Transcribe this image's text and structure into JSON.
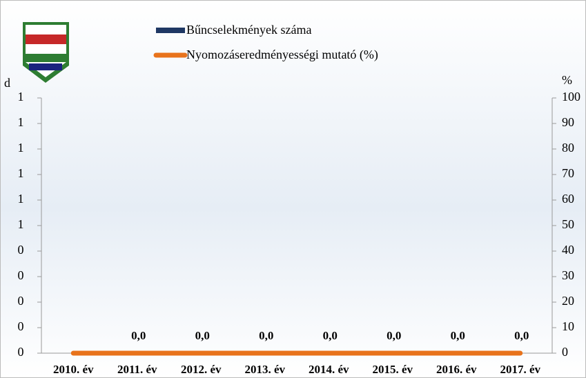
{
  "chart_data": {
    "type": "bar_line",
    "y_label": "d",
    "y2_label": "%",
    "categories": [
      "2010. év",
      "2011. év",
      "2012. év",
      "2013. év",
      "2014. év",
      "2015. év",
      "2016. év",
      "2017. év"
    ],
    "series": [
      {
        "name": "Bűncselekmények száma",
        "type": "bar",
        "color": "#1f3864",
        "values": [
          0,
          0,
          0,
          0,
          0,
          0,
          0,
          0
        ]
      },
      {
        "name": "Nyomozáseredményességi mutató (%)",
        "type": "line",
        "axis": "y2",
        "color": "#e8731c",
        "values": [
          0,
          0,
          0,
          0,
          0,
          0,
          0,
          0
        ],
        "value_labels": [
          null,
          "0,0",
          "0,0",
          "0,0",
          "0,0",
          "0,0",
          "0,0",
          "0,0"
        ]
      }
    ],
    "ylim": [
      0,
      1
    ],
    "yticks": [
      0,
      {
        "value": 0.1,
        "label": "0"
      },
      {
        "value": 0.2,
        "label": "0"
      },
      {
        "value": 0.3,
        "label": "0"
      },
      {
        "value": 0.4,
        "label": "0"
      },
      {
        "value": 0.5,
        "label": "1"
      },
      {
        "value": 0.6,
        "label": "1"
      },
      {
        "value": 0.7,
        "label": "1"
      },
      {
        "value": 0.8,
        "label": "1"
      },
      {
        "value": 0.9,
        "label": "1"
      },
      1
    ],
    "y2lim": [
      0,
      100
    ],
    "y2ticks": [
      0,
      10,
      20,
      30,
      40,
      50,
      60,
      70,
      80,
      90,
      100
    ]
  }
}
